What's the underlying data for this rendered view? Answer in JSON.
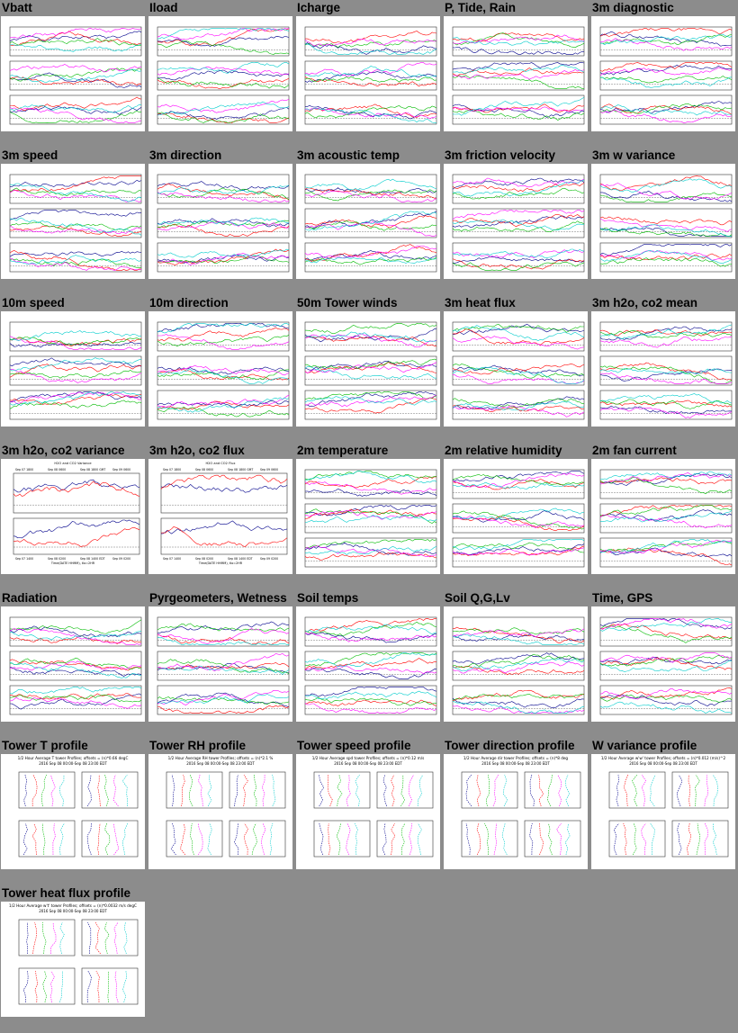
{
  "plots": [
    {
      "title": "Vbatt",
      "kind": "line3"
    },
    {
      "title": "Iload",
      "kind": "line3"
    },
    {
      "title": "Icharge",
      "kind": "line3"
    },
    {
      "title": "P, Tide, Rain",
      "kind": "line3"
    },
    {
      "title": "3m diagnostic",
      "kind": "line3"
    },
    {
      "title": "3m speed",
      "kind": "line3"
    },
    {
      "title": "3m direction",
      "kind": "line3"
    },
    {
      "title": "3m acoustic temp",
      "kind": "line3"
    },
    {
      "title": "3m friction velocity",
      "kind": "line3"
    },
    {
      "title": "3m w variance",
      "kind": "line3"
    },
    {
      "title": "10m speed",
      "kind": "line3"
    },
    {
      "title": "10m direction",
      "kind": "line3"
    },
    {
      "title": "50m Tower winds",
      "kind": "line3"
    },
    {
      "title": "3m heat flux",
      "kind": "line3"
    },
    {
      "title": "3m h2o, co2 mean",
      "kind": "line3"
    },
    {
      "title": "3m h2o, co2 variance",
      "kind": "line2",
      "caption": "H2O and CO2 Variance",
      "xticks": [
        "Sep 07 1800",
        "Sep 08 0600",
        "Sep 08 1800 GMT",
        "Sep 09 0600"
      ],
      "xticks2": [
        "Sep 07 1400",
        "Sep 08 0200",
        "Sep 08 1400 EDT",
        "Sep 09 0200"
      ],
      "xlabel": "Time(DATE HHMM), tlo=2HR"
    },
    {
      "title": "3m h2o, co2 flux",
      "kind": "line2",
      "caption": "H2O and CO2 Flux",
      "xticks": [
        "Sep 07 1800",
        "Sep 08 0600",
        "Sep 08 1800 GMT",
        "Sep 09 0600"
      ],
      "xticks2": [
        "Sep 07 1400",
        "Sep 08 0200",
        "Sep 08 1400 EDT",
        "Sep 09 0200"
      ],
      "xlabel": "Time(DATE HHMM), tlo=2HR"
    },
    {
      "title": "2m temperature",
      "kind": "line3"
    },
    {
      "title": "2m relative humidity",
      "kind": "line3"
    },
    {
      "title": "2m fan current",
      "kind": "line3"
    },
    {
      "title": "Radiation",
      "kind": "line3"
    },
    {
      "title": "Pyrgeometers, Wetness",
      "kind": "line3"
    },
    {
      "title": "Soil temps",
      "kind": "line3"
    },
    {
      "title": "Soil Q,G,Lv",
      "kind": "line3"
    },
    {
      "title": "Time, GPS",
      "kind": "line3"
    },
    {
      "title": "Tower T profile",
      "kind": "profile",
      "caption": "1/2 Hour Average T tower Profiles; offsets = (n)*0.66 degC",
      "subcaption": "2016 Sep 08 00:00-Sep 08 23:00 EDT"
    },
    {
      "title": "Tower RH profile",
      "kind": "profile",
      "caption": "1/2 Hour Average RH tower Profiles; offsets = (n)*2.1 %",
      "subcaption": "2016 Sep 08 00:00-Sep 08 23:00 EDT"
    },
    {
      "title": "Tower speed profile",
      "kind": "profile",
      "caption": "1/2 Hour Average spd tower Profiles; offsets = (n)*0.12 m/s",
      "subcaption": "2016 Sep 08 00:00-Sep 08 23:00 EDT"
    },
    {
      "title": "Tower direction profile",
      "kind": "profile",
      "caption": "1/2 Hour Average dir tower Profiles; offsets = (n)*8 deg",
      "subcaption": "2016 Sep 08 00:00-Sep 08 23:00 EDT"
    },
    {
      "title": "W variance profile",
      "kind": "profile",
      "caption": "1/2 Hour Average w'w' tower Profiles; offsets = (n)*0.012 (m/s)^2",
      "subcaption": "2016 Sep 08 00:00-Sep 08 23:00 EDT"
    },
    {
      "title": "Tower heat flux profile",
      "kind": "profile",
      "caption": "1/2 Hour Average w't' tower Profiles; offsets = (n)*0.0032 m/s degC",
      "subcaption": "2016 Sep 08 00:00-Sep 08 23:00 EDT"
    }
  ],
  "colors": {
    "background": "#8c8c8c",
    "plot_background": "#ffffff",
    "series": [
      "#00008b",
      "#ff0000",
      "#00bb00",
      "#ff00ff",
      "#00cccc",
      "#ffcc00",
      "#ff8800",
      "#000000",
      "#aaaa00"
    ]
  }
}
